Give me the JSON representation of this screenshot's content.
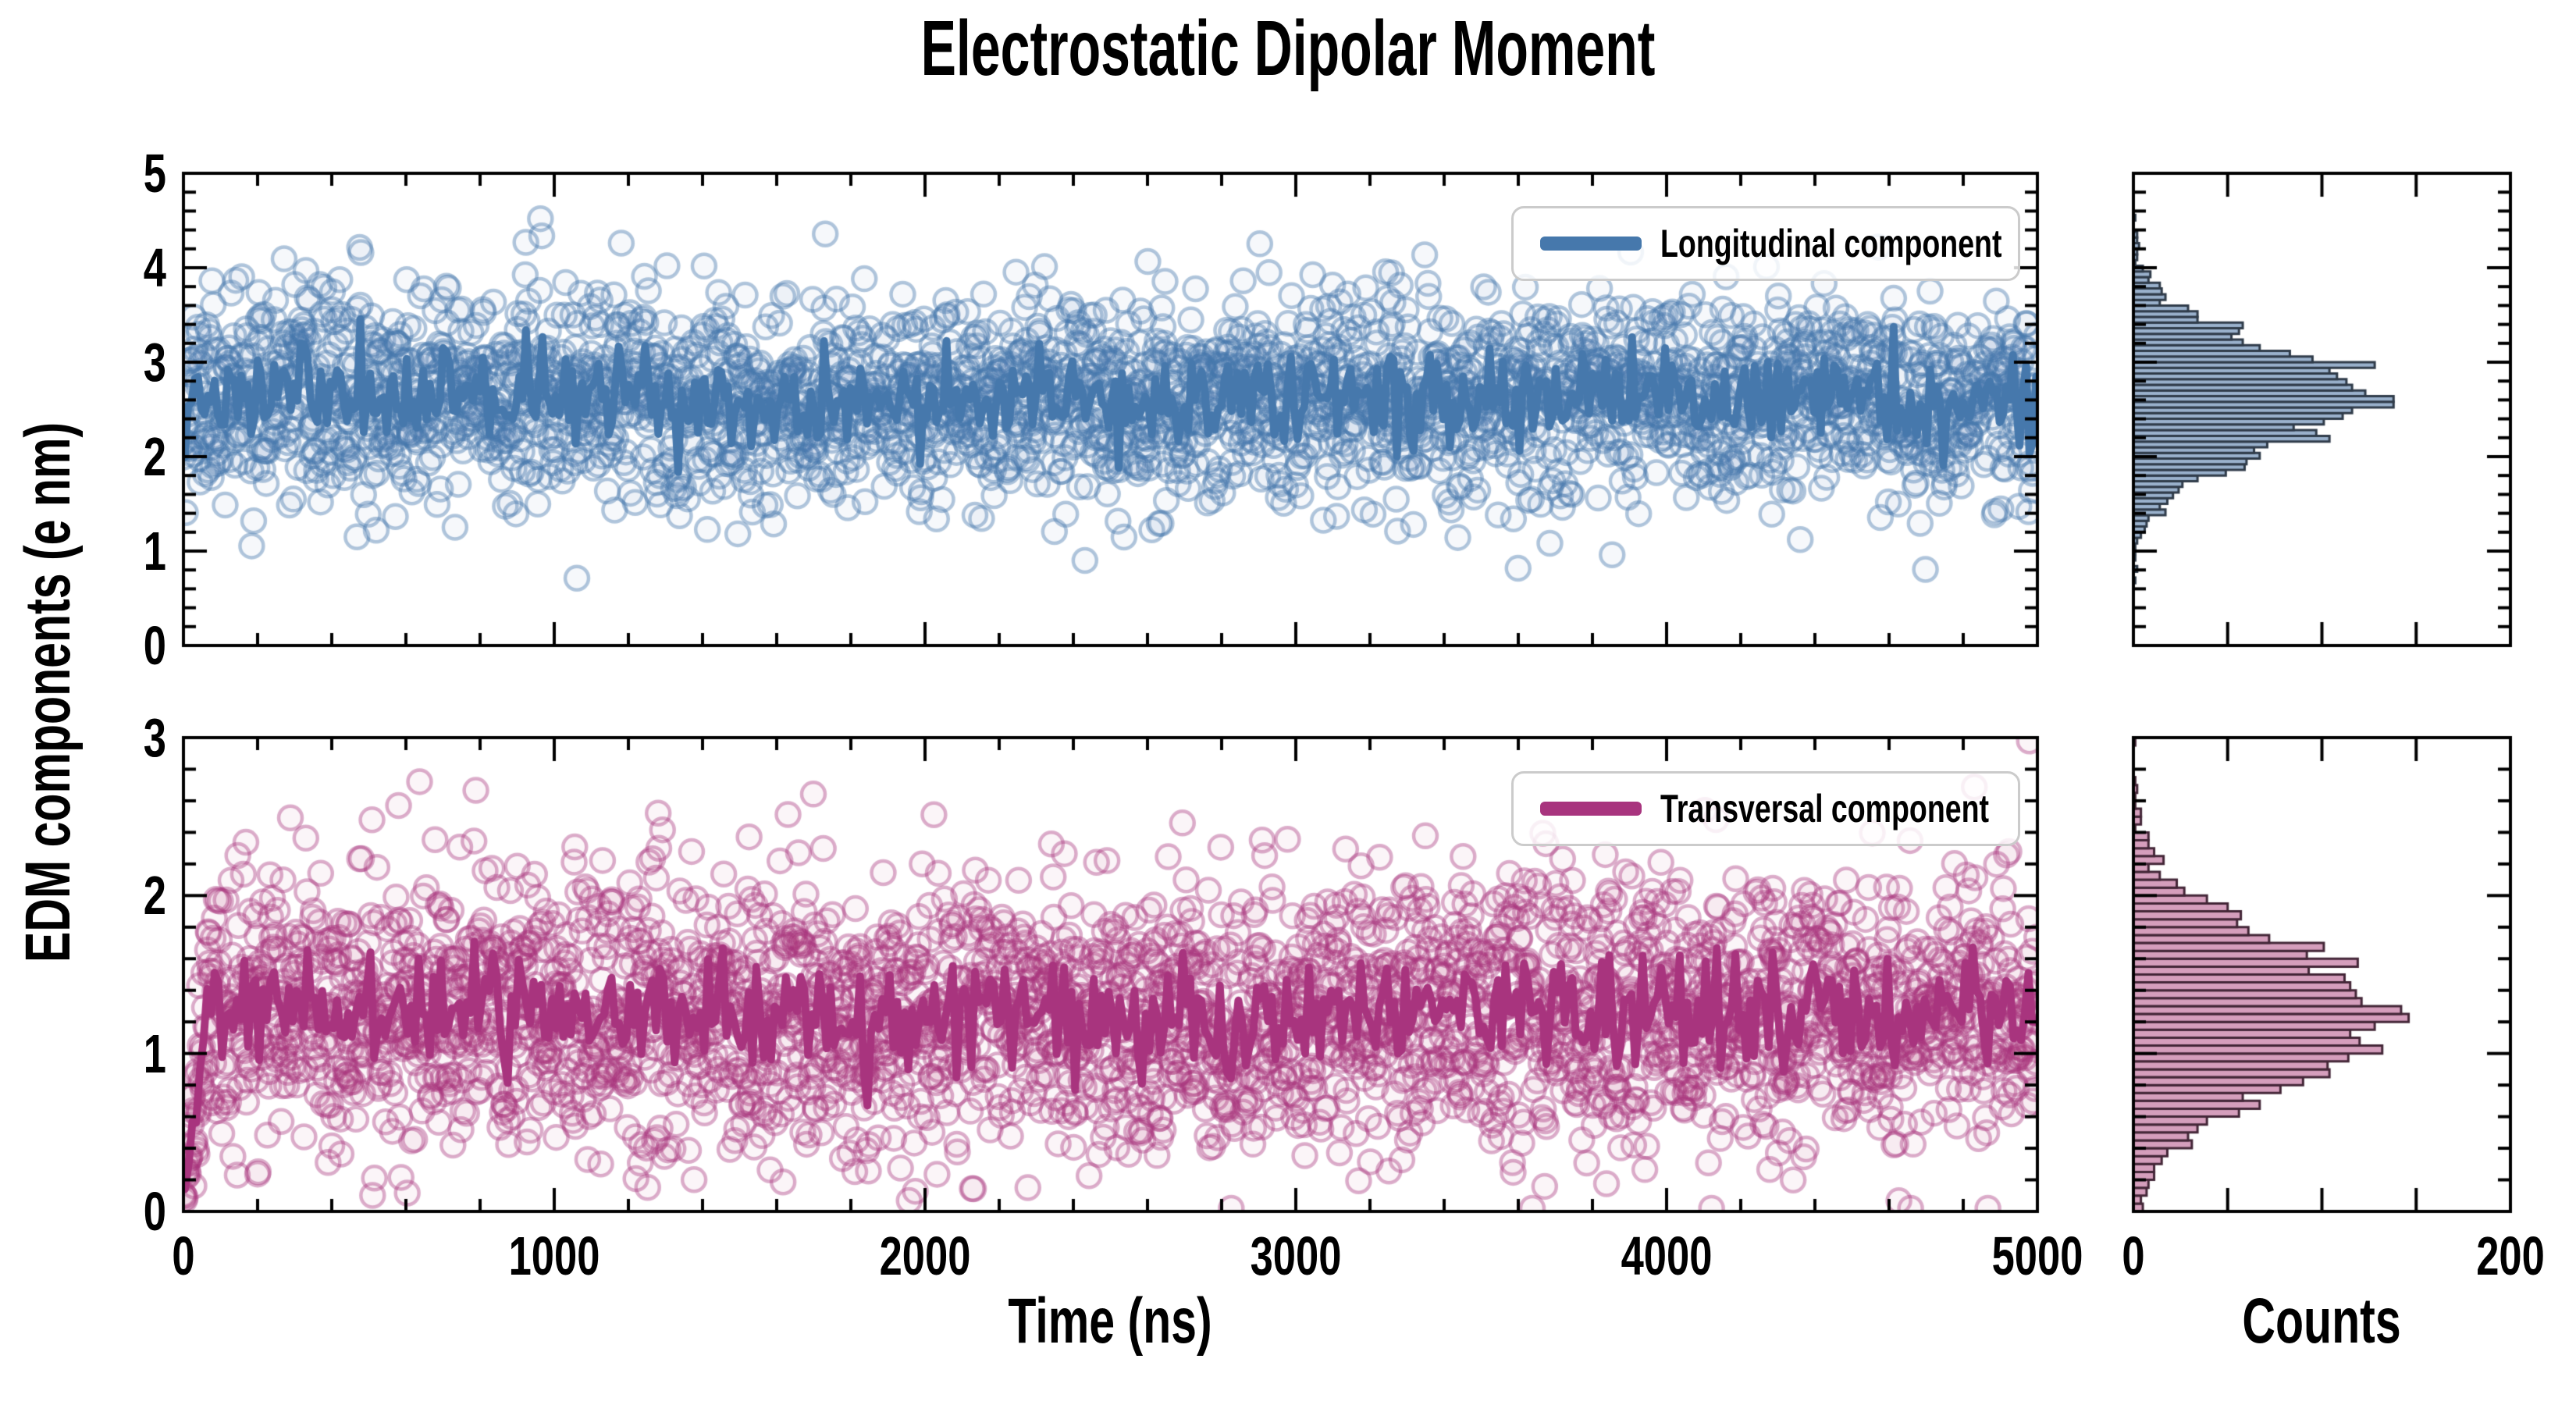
{
  "title": "Electrostatic Dipolar Moment",
  "axes": {
    "y_label": "EDM components (e nm)",
    "x_label_time": "Time (ns)",
    "x_label_counts": "Counts",
    "time_ticks": [
      "0",
      "1000",
      "2000",
      "3000",
      "4000",
      "5000"
    ],
    "top_y_ticks": [
      "0",
      "1",
      "2",
      "3",
      "4",
      "5"
    ],
    "bottom_y_ticks": [
      "0",
      "1",
      "2",
      "3"
    ],
    "counts_ticks": [
      "0",
      "200"
    ]
  },
  "legend": {
    "top": "Longitudinal component",
    "bottom": "Transversal component"
  },
  "colors": {
    "longitudinal": {
      "line": "#4678ac",
      "scatter_edge_alpha": 0.42,
      "scatter_fill_alpha": 0.05,
      "hist_fill": "#9ab1cc",
      "hist_edge": "#2f3b49"
    },
    "transversal": {
      "line": "#a8347e",
      "scatter_edge_alpha": 0.4,
      "scatter_fill_alpha": 0.05,
      "hist_fill": "#d59ebc",
      "hist_edge": "#432637"
    },
    "axis": "#000000",
    "legend_border": "#cbcbcb"
  },
  "chart_data": [
    {
      "id": "longitudinal-timeseries",
      "type": "scatter",
      "xlabel": "Time (ns)",
      "ylabel": "EDM components (e nm)",
      "xlim": [
        0,
        5000
      ],
      "ylim": [
        0,
        5
      ],
      "x_major_ticks": [
        0,
        1000,
        2000,
        3000,
        4000,
        5000
      ],
      "x_minor_tick_step": 200,
      "y_major_ticks": [
        0,
        1,
        2,
        3,
        4,
        5
      ],
      "y_minor_tick_step": 0.2,
      "grid": false,
      "legend_label": "Longitudinal component",
      "legend_position": "upper right",
      "series": [
        {
          "name": "Longitudinal samples",
          "style": "open-circle-scatter",
          "distribution": "gaussian-white-noise",
          "n_points": 2800,
          "mean": 2.62,
          "std": 0.55,
          "observed_range": [
            0.9,
            4.3
          ],
          "t_range_ns": [
            0,
            5000
          ],
          "seed": 11
        },
        {
          "name": "Longitudinal component",
          "style": "thick-line",
          "derived": "block-mean-of-samples",
          "block": 5,
          "line_mean": 2.62,
          "line_typical_range": [
            1.7,
            3.4
          ]
        }
      ]
    },
    {
      "id": "longitudinal-histogram",
      "type": "histogram",
      "orientation": "horizontal",
      "source": "longitudinal-timeseries",
      "value_range": [
        0,
        5
      ],
      "bin_width": 0.06,
      "xlabel": "Counts",
      "xlim": [
        0,
        200
      ],
      "x_major_ticks": [
        0,
        50,
        100,
        150,
        200
      ],
      "x_tick_labels_shown": [
        "0",
        "200"
      ],
      "peak_counts": 122,
      "peak_at_value": 2.6
    },
    {
      "id": "transversal-timeseries",
      "type": "scatter",
      "xlabel": "Time (ns)",
      "ylabel": "EDM components (e nm)",
      "xlim": [
        0,
        5000
      ],
      "ylim": [
        0,
        3
      ],
      "x_major_ticks": [
        0,
        1000,
        2000,
        3000,
        4000,
        5000
      ],
      "x_minor_tick_step": 200,
      "y_major_ticks": [
        0,
        1,
        2,
        3
      ],
      "y_minor_tick_step": 0.2,
      "grid": false,
      "legend_label": "Transversal component",
      "legend_position": "upper right",
      "series": [
        {
          "name": "Transversal samples",
          "style": "open-circle-scatter",
          "distribution": "gaussian-white-noise",
          "n_points": 3000,
          "mean": 1.26,
          "std": 0.45,
          "observed_range": [
            0.05,
            2.6
          ],
          "clamp_min": 0.02,
          "equilibration_ramp": {
            "duration_ns": 70,
            "start_factor": 0.08
          },
          "t_range_ns": [
            0,
            5000
          ],
          "seed": 97
        },
        {
          "name": "Transversal component",
          "style": "thick-line",
          "derived": "block-mean-of-samples",
          "block": 6,
          "line_mean": 1.26,
          "line_typical_range": [
            0.8,
            1.8
          ],
          "line_start_value": 0.12
        }
      ]
    },
    {
      "id": "transversal-histogram",
      "type": "histogram",
      "orientation": "horizontal",
      "source": "transversal-timeseries",
      "value_range": [
        0,
        3
      ],
      "bin_width": 0.05,
      "xlabel": "Counts",
      "xlim": [
        0,
        200
      ],
      "x_major_ticks": [
        0,
        50,
        100,
        150,
        200
      ],
      "x_tick_labels_shown": [
        "0",
        "200"
      ],
      "peak_counts": 138,
      "peak_at_value": 1.25
    }
  ]
}
